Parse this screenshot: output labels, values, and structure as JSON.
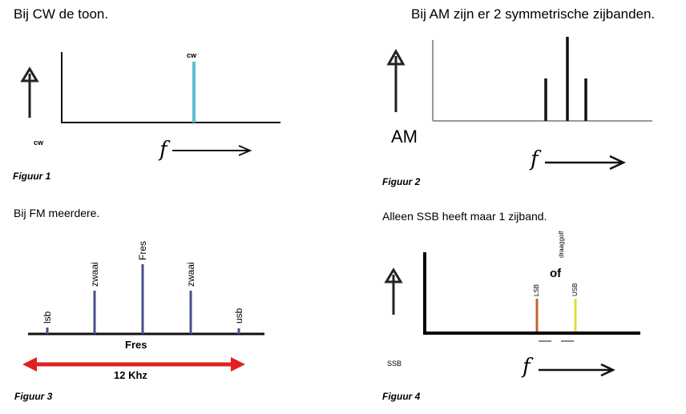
{
  "fig1": {
    "heading": "Bij CW de toon.",
    "line_label": "cw",
    "axis_label": "cw",
    "f_label": "f",
    "caption": "Figuur 1",
    "line_color": "#5bbfd0"
  },
  "fig2": {
    "heading": "Bij AM zijn er 2 symmetrische zijbanden.",
    "axis_label": "AM",
    "f_label": "f",
    "caption": "Figuur 2"
  },
  "fig3": {
    "heading": "Bij FM meerdere.",
    "labels": [
      "lsb",
      "zwaai",
      "Fres",
      "zwaai",
      "usb"
    ],
    "axis_label": "Fres",
    "span_label": "12 Khz",
    "caption": "Figuur 3",
    "line_color": "#4a4f8c",
    "span_color": "#e02020"
  },
  "fig4": {
    "heading": "Alleen SSB heeft maar 1 zijband.",
    "carrier_label": "draaggolf",
    "or_label": "of",
    "lsb_label": "LSB",
    "usb_label": "USB",
    "axis_label": "SSB",
    "f_label": "f",
    "caption": "Figuur 4",
    "lsb_color": "#c0642a",
    "usb_color": "#e8d83a"
  }
}
